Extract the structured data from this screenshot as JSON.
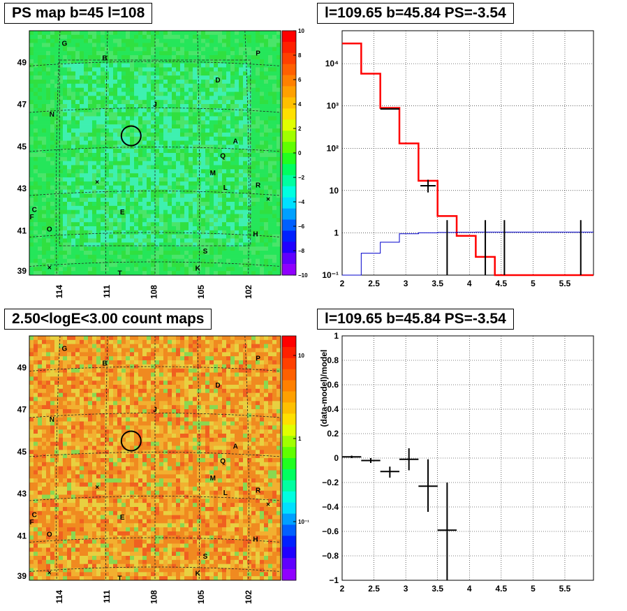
{
  "titles": {
    "tl": "PS map b=45 l=108",
    "tr": "l=109.65 b=45.84 PS=-3.54",
    "bl": "2.50<logE<3.00 count maps",
    "br": "l=109.65 b=45.84 PS=-3.54"
  },
  "colors": {
    "map_top": "#2ee35a",
    "map_bottom": "#f0a030",
    "model": "#ff0000",
    "background": "#0000cc",
    "data": "#000000"
  },
  "map_labels": [
    "G",
    "B",
    "P",
    "D",
    "J",
    "N",
    "A",
    "Q",
    "M",
    "L",
    "R",
    "C",
    "F",
    "E",
    "O",
    "H",
    "S",
    "K",
    "T"
  ],
  "chart_data": [
    {
      "type": "heatmap",
      "title": "PS map b=45 l=108",
      "x_ticks": [
        "114",
        "111",
        "108",
        "105",
        "102"
      ],
      "y_ticks": [
        "49",
        "47",
        "45",
        "43",
        "41",
        "39"
      ],
      "colorbar_ticks": [
        "10",
        "8",
        "6",
        "4",
        "2",
        "0",
        "−2",
        "−4",
        "−6",
        "−8",
        "−10"
      ],
      "zlim": [
        -10,
        10
      ]
    },
    {
      "type": "line",
      "title": "l=109.65 b=45.84 PS=-3.54",
      "log_y": true,
      "xlim": [
        2,
        5.95
      ],
      "ylim": [
        0.1,
        60000
      ],
      "x_ticks": [
        "2",
        "2.5",
        "3",
        "3.5",
        "4",
        "4.5",
        "5",
        "5.5"
      ],
      "y_ticks": [
        "10⁻¹",
        "1",
        "10",
        "10²",
        "10³",
        "10⁴"
      ],
      "grid": true,
      "series": [
        {
          "style": "red-step",
          "edges": [
            2.0,
            2.3,
            2.6,
            2.9,
            3.2,
            3.5,
            3.8,
            4.1,
            4.4,
            4.7,
            5.0,
            5.3,
            5.6,
            5.95
          ],
          "values": [
            30000,
            5800,
            900,
            130,
            17,
            2.5,
            0.85,
            0.27,
            0.1,
            0.1,
            0.1,
            0.1,
            0.1
          ]
        },
        {
          "style": "blue-step",
          "edges": [
            2.0,
            2.3,
            2.6,
            2.9,
            3.2,
            3.5,
            3.8,
            4.1,
            4.4,
            4.7,
            5.0,
            5.3,
            5.6,
            5.95
          ],
          "values": [
            0.1,
            0.33,
            0.6,
            0.95,
            1.0,
            1.02,
            1.03,
            1.04,
            1.04,
            1.04,
            1.04,
            1.04,
            1.04
          ]
        },
        {
          "style": "data-crosses",
          "points": [
            {
              "x": 2.75,
              "xerr": 0.15,
              "y": 850,
              "ylo": 850,
              "yhi": 850
            },
            {
              "x": 3.05,
              "xerr": 0.0,
              "y": 130,
              "ylo": 130,
              "yhi": 130
            },
            {
              "x": 3.35,
              "xerr": 0.12,
              "y": 13,
              "ylo": 9,
              "yhi": 18
            },
            {
              "x": 3.65,
              "xerr": 0.0,
              "y": 0.1,
              "ylo": 0.1,
              "yhi": 2.0
            },
            {
              "x": 4.25,
              "xerr": 0.0,
              "y": 0.1,
              "ylo": 0.1,
              "yhi": 2.0
            },
            {
              "x": 4.55,
              "xerr": 0.0,
              "y": 0.1,
              "ylo": 0.1,
              "yhi": 2.0
            },
            {
              "x": 5.75,
              "xerr": 0.0,
              "y": 0.1,
              "ylo": 0.1,
              "yhi": 2.0
            }
          ]
        }
      ]
    },
    {
      "type": "heatmap",
      "title": "2.50<logE<3.00 count maps",
      "x_ticks": [
        "114",
        "111",
        "108",
        "105",
        "102"
      ],
      "y_ticks": [
        "49",
        "47",
        "45",
        "43",
        "41",
        "39"
      ],
      "colorbar_ticks": [
        "10",
        "1",
        "10⁻¹"
      ]
    },
    {
      "type": "scatter",
      "title": "l=109.65 b=45.84 PS=-3.54",
      "ylabel": "(data-model)/model",
      "xlim": [
        2,
        5.95
      ],
      "ylim": [
        -1,
        1
      ],
      "x_ticks": [
        "2",
        "2.5",
        "3",
        "3.5",
        "4",
        "4.5",
        "5",
        "5.5"
      ],
      "y_ticks": [
        "−1",
        "−0.8",
        "−0.6",
        "−0.4",
        "−0.2",
        "0",
        "0.2",
        "0.4",
        "0.6",
        "0.8",
        "1"
      ],
      "grid": true,
      "points": [
        {
          "x": 2.15,
          "xerr": 0.15,
          "y": 0.01,
          "ylo": 0.0,
          "yhi": 0.02
        },
        {
          "x": 2.45,
          "xerr": 0.15,
          "y": -0.02,
          "ylo": -0.04,
          "yhi": 0.0
        },
        {
          "x": 2.75,
          "xerr": 0.15,
          "y": -0.11,
          "ylo": -0.16,
          "yhi": -0.07
        },
        {
          "x": 3.05,
          "xerr": 0.15,
          "y": -0.01,
          "ylo": -0.1,
          "yhi": 0.08
        },
        {
          "x": 3.35,
          "xerr": 0.15,
          "y": -0.23,
          "ylo": -0.44,
          "yhi": -0.01
        },
        {
          "x": 3.65,
          "xerr": 0.15,
          "y": -0.59,
          "ylo": -1.0,
          "yhi": -0.2
        }
      ]
    }
  ]
}
